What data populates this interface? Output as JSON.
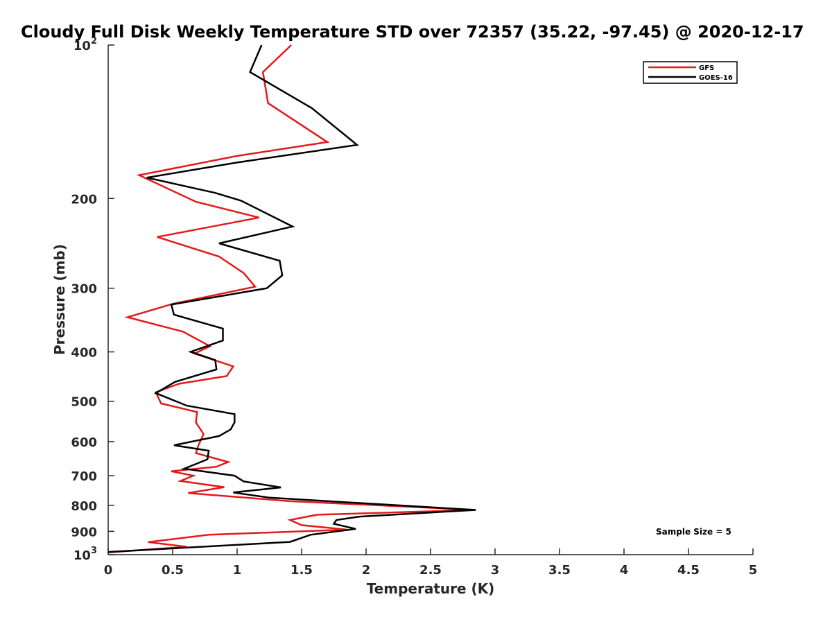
{
  "chart_data": {
    "type": "line",
    "title": "Cloudy Full Disk Weekly Temperature STD over 72357 (35.22, -97.45) @ 2020-12-17",
    "xlabel": "Temperature (K)",
    "ylabel": "Pressure (mb)",
    "xlim": [
      0,
      5
    ],
    "ylim": [
      100,
      1000
    ],
    "y_scale": "log",
    "y_reversed": true,
    "grid": false,
    "legend_position": "top-right",
    "x_ticks": [
      {
        "value": 0,
        "label": "0"
      },
      {
        "value": 0.5,
        "label": "0.5"
      },
      {
        "value": 1,
        "label": "1"
      },
      {
        "value": 1.5,
        "label": "1.5"
      },
      {
        "value": 2,
        "label": "2"
      },
      {
        "value": 2.5,
        "label": "2.5"
      },
      {
        "value": 3,
        "label": "3"
      },
      {
        "value": 3.5,
        "label": "3.5"
      },
      {
        "value": 4,
        "label": "4"
      },
      {
        "value": 4.5,
        "label": "4.5"
      },
      {
        "value": 5,
        "label": "5"
      }
    ],
    "y_ticks": [
      {
        "value": 100,
        "base": "10",
        "exp": "2"
      },
      {
        "value": 200,
        "label": "200"
      },
      {
        "value": 300,
        "label": "300"
      },
      {
        "value": 400,
        "label": "400"
      },
      {
        "value": 500,
        "label": "500"
      },
      {
        "value": 600,
        "label": "600"
      },
      {
        "value": 700,
        "label": "700"
      },
      {
        "value": 800,
        "label": "800"
      },
      {
        "value": 900,
        "label": "900"
      },
      {
        "value": 1000,
        "base": "10",
        "exp": "3"
      }
    ],
    "series": [
      {
        "name": "GFS",
        "color": "#e31a1c",
        "points": [
          [
            1.42,
            100
          ],
          [
            1.2,
            113
          ],
          [
            1.24,
            130
          ],
          [
            1.7,
            155
          ],
          [
            1.0,
            165
          ],
          [
            0.24,
            180
          ],
          [
            0.68,
            203
          ],
          [
            1.17,
            218
          ],
          [
            0.38,
            238
          ],
          [
            0.86,
            260
          ],
          [
            1.05,
            280
          ],
          [
            1.14,
            298
          ],
          [
            0.5,
            322
          ],
          [
            0.15,
            342
          ],
          [
            0.58,
            365
          ],
          [
            0.79,
            390
          ],
          [
            0.67,
            403
          ],
          [
            0.97,
            427
          ],
          [
            0.92,
            446
          ],
          [
            0.55,
            462
          ],
          [
            0.37,
            480
          ],
          [
            0.41,
            505
          ],
          [
            0.69,
            525
          ],
          [
            0.68,
            550
          ],
          [
            0.74,
            580
          ],
          [
            0.7,
            610
          ],
          [
            0.68,
            632
          ],
          [
            0.93,
            658
          ],
          [
            0.84,
            672
          ],
          [
            0.49,
            686
          ],
          [
            0.66,
            700
          ],
          [
            0.56,
            717
          ],
          [
            0.9,
            737
          ],
          [
            0.62,
            757
          ],
          [
            1.4,
            785
          ],
          [
            2.85,
            817
          ],
          [
            1.62,
            835
          ],
          [
            1.41,
            855
          ],
          [
            1.5,
            875
          ],
          [
            1.85,
            893
          ],
          [
            0.78,
            914
          ],
          [
            0.31,
            945
          ],
          [
            0.61,
            965
          ],
          [
            0.0,
            990
          ]
        ]
      },
      {
        "name": "GOES-16",
        "color": "#000000",
        "points": [
          [
            1.19,
            100
          ],
          [
            1.1,
            113
          ],
          [
            1.58,
            133
          ],
          [
            1.93,
            157
          ],
          [
            1.0,
            170
          ],
          [
            0.3,
            182
          ],
          [
            0.83,
            195
          ],
          [
            1.03,
            202
          ],
          [
            1.43,
            227
          ],
          [
            0.86,
            245
          ],
          [
            1.33,
            265
          ],
          [
            1.35,
            283
          ],
          [
            1.23,
            300
          ],
          [
            0.49,
            323
          ],
          [
            0.51,
            338
          ],
          [
            0.89,
            360
          ],
          [
            0.89,
            380
          ],
          [
            0.64,
            400
          ],
          [
            0.83,
            415
          ],
          [
            0.84,
            433
          ],
          [
            0.52,
            458
          ],
          [
            0.37,
            482
          ],
          [
            0.61,
            510
          ],
          [
            0.98,
            530
          ],
          [
            0.98,
            550
          ],
          [
            0.95,
            568
          ],
          [
            0.86,
            585
          ],
          [
            0.51,
            610
          ],
          [
            0.78,
            625
          ],
          [
            0.77,
            650
          ],
          [
            0.59,
            678
          ],
          [
            0.98,
            700
          ],
          [
            1.05,
            718
          ],
          [
            1.34,
            738
          ],
          [
            0.97,
            755
          ],
          [
            1.25,
            773
          ],
          [
            2.85,
            817
          ],
          [
            1.95,
            842
          ],
          [
            1.77,
            855
          ],
          [
            1.75,
            870
          ],
          [
            1.92,
            890
          ],
          [
            1.57,
            914
          ],
          [
            1.41,
            944
          ],
          [
            0.0,
            988
          ]
        ]
      }
    ],
    "legend": {
      "entries": [
        "GFS",
        "GOES-16"
      ]
    },
    "annotations": {
      "sample_size": "Sample Size = 5"
    }
  }
}
